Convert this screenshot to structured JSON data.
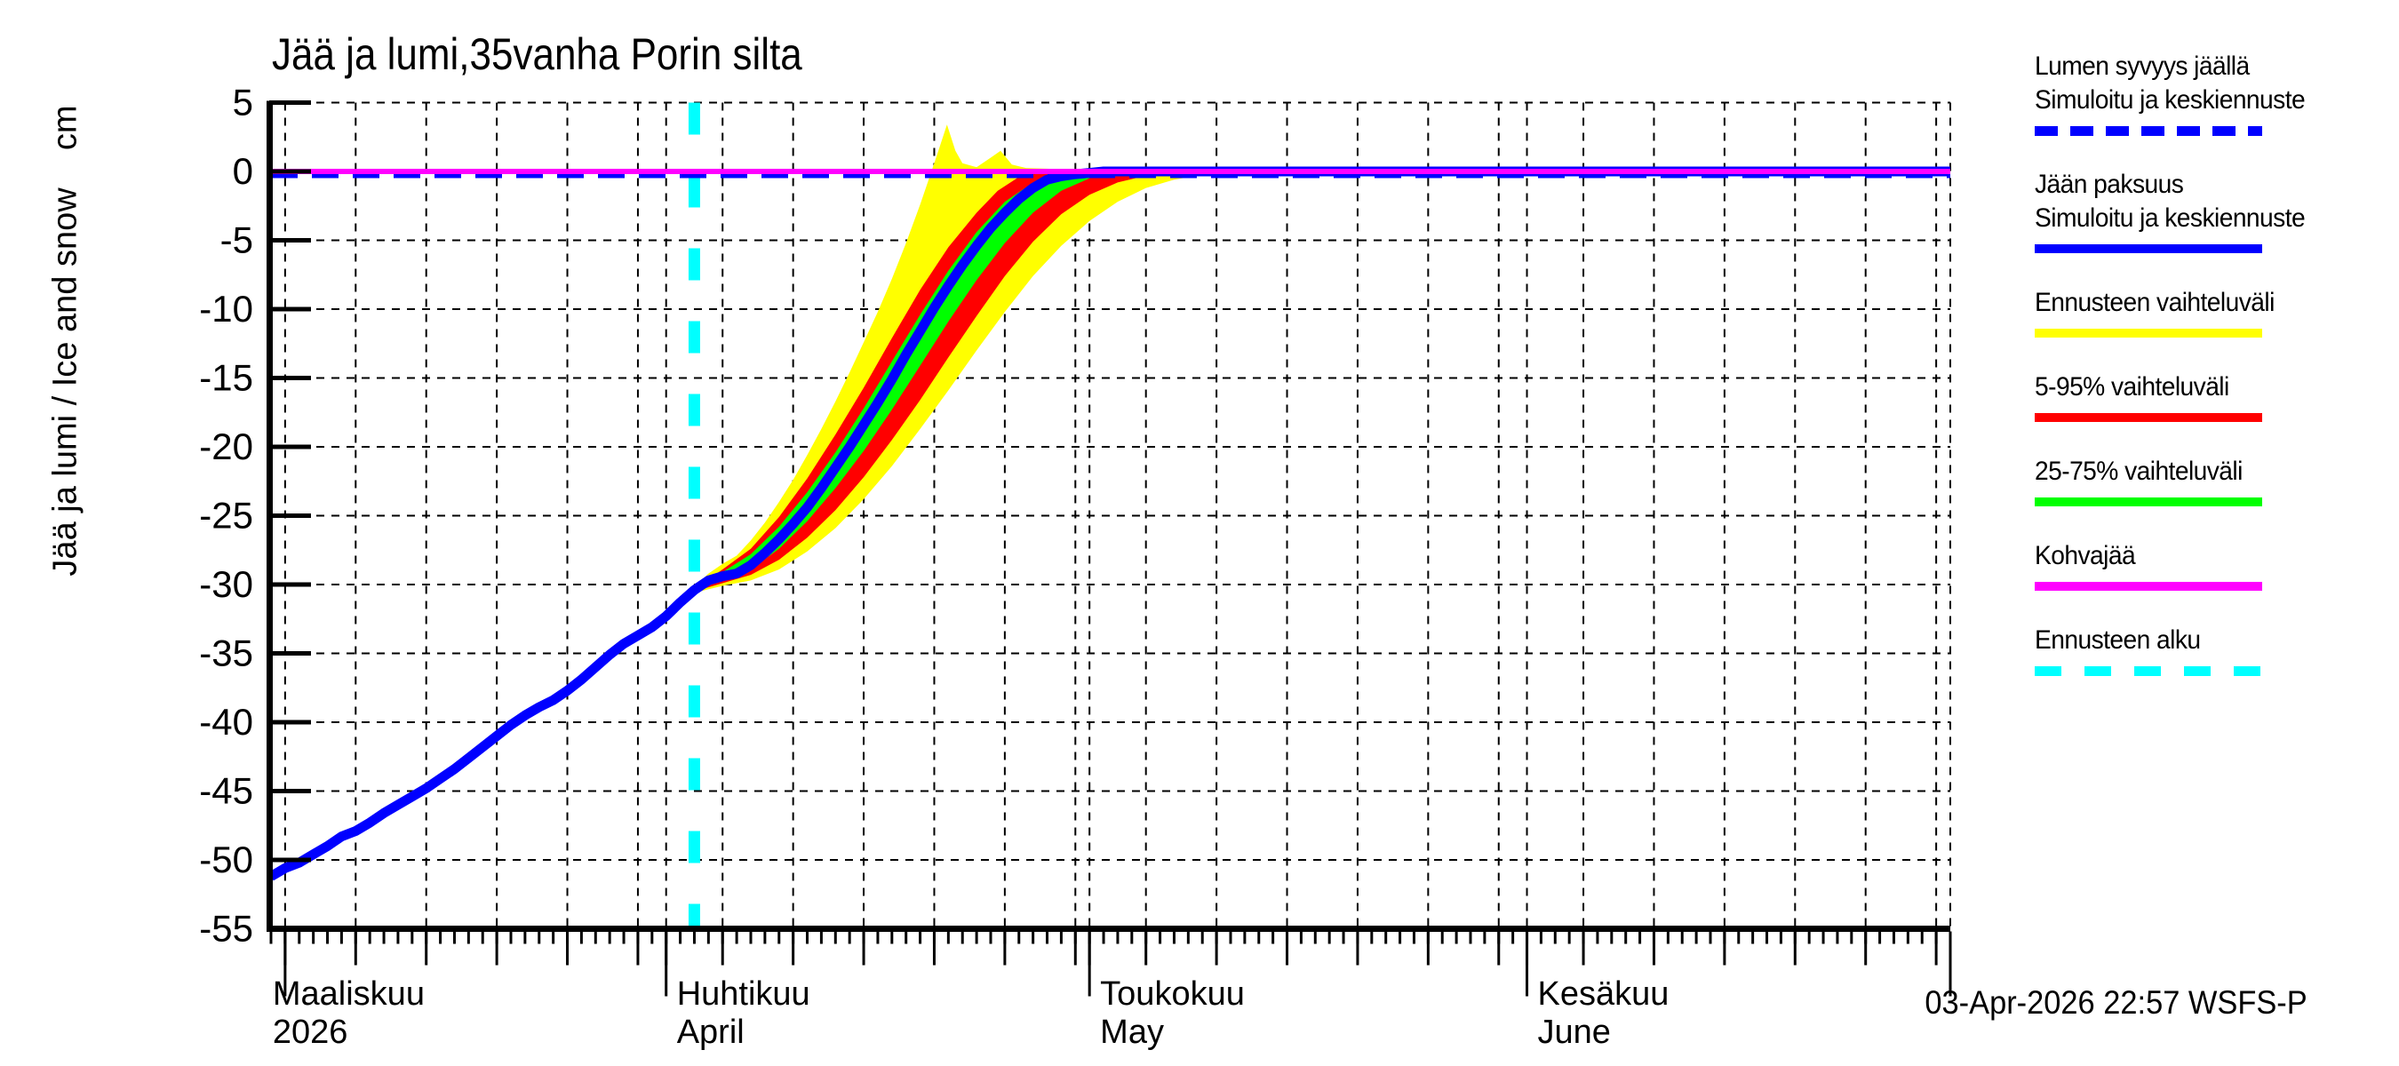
{
  "title": "Jää ja lumi,35vanha Porin silta",
  "y_axis_label": "Jää ja lumi / Ice and snow    cm",
  "timestamp": "03-Apr-2026 22:57 WSFS-P",
  "colors": {
    "simulated_line": "#0000ff",
    "snow_depth_line": "#0000ff",
    "forecast_range": "#ffff00",
    "range_5_95": "#ff0000",
    "range_25_75": "#00ff00",
    "kohvajaa": "#ff00ff",
    "forecast_start": "#00ffff",
    "grid": "#000000",
    "axis": "#000000"
  },
  "legend": {
    "items": [
      {
        "lines": [
          "Lumen syvyys jäällä",
          "Simuloitu ja keskiennuste"
        ],
        "color": "#0000ff",
        "style": "dashed",
        "icon": "dashed-blue-line"
      },
      {
        "lines": [
          "Jään paksuus",
          "Simuloitu ja keskiennuste"
        ],
        "color": "#0000ff",
        "style": "solid",
        "icon": "solid-blue-line"
      },
      {
        "lines": [
          "Ennusteen vaihteluväli"
        ],
        "color": "#ffff00",
        "style": "solid",
        "icon": "solid-yellow-line"
      },
      {
        "lines": [
          "5-95% vaihteluväli"
        ],
        "color": "#ff0000",
        "style": "solid",
        "icon": "solid-red-line"
      },
      {
        "lines": [
          "25-75% vaihteluväli"
        ],
        "color": "#00ff00",
        "style": "solid",
        "icon": "solid-green-line"
      },
      {
        "lines": [
          "Kohvajää"
        ],
        "color": "#ff00ff",
        "style": "solid",
        "icon": "solid-magenta-line"
      },
      {
        "lines": [
          "Ennusteen alku"
        ],
        "color": "#00ffff",
        "style": "dashed",
        "icon": "dashed-cyan-line"
      }
    ]
  },
  "chart_data": {
    "type": "line",
    "title": "Jää ja lumi,35vanha Porin silta",
    "ylabel": "Jää ja lumi / Ice and snow (cm)",
    "ylim": [
      -55,
      5
    ],
    "y_ticks": [
      5,
      0,
      -5,
      -10,
      -15,
      -20,
      -25,
      -30,
      -35,
      -40,
      -45,
      -50,
      -55
    ],
    "x_unit": "days since 2026-03-01",
    "xlim": [
      3,
      122
    ],
    "x_months": [
      {
        "label_fi": "Maaliskuu",
        "label_2": "2026",
        "tick_t": 4
      },
      {
        "label_fi": "Huhtikuu",
        "label_2": "April",
        "tick_t": 31
      },
      {
        "label_fi": "Toukokuu",
        "label_2": "May",
        "tick_t": 61
      },
      {
        "label_fi": "Kesäkuu",
        "label_2": "June",
        "tick_t": 92
      }
    ],
    "month_start_ts": [
      0,
      31,
      61,
      92
    ],
    "month_boundary_ts": [
      31,
      61,
      92,
      122
    ],
    "five_day_offsets": [
      4,
      9,
      14,
      19,
      24,
      29
    ],
    "grid": "on",
    "legend_position": "top-right-outside",
    "forecast_start": {
      "t": 33,
      "date": "03-Apr-2026"
    },
    "series": [
      {
        "name": "forecast_range_band",
        "legend": "Ennusteen vaihteluväli",
        "color": "#ffff00",
        "kind": "band",
        "upper": [
          [
            33,
            -30.2
          ],
          [
            34,
            -29.2
          ],
          [
            35,
            -28.5
          ],
          [
            36,
            -27.9
          ],
          [
            37,
            -26.8
          ],
          [
            38,
            -25.5
          ],
          [
            39,
            -24.0
          ],
          [
            40,
            -22.4
          ],
          [
            41,
            -20.6
          ],
          [
            42,
            -18.7
          ],
          [
            43,
            -16.7
          ],
          [
            44,
            -14.6
          ],
          [
            45,
            -12.4
          ],
          [
            46,
            -10.2
          ],
          [
            47,
            -7.8
          ],
          [
            48,
            -5.2
          ],
          [
            49,
            -2.4
          ],
          [
            49.7,
            -0.3
          ],
          [
            50.2,
            1.2
          ],
          [
            50.9,
            3.4
          ],
          [
            51.5,
            1.5
          ],
          [
            52,
            0.6
          ],
          [
            53,
            0.3
          ],
          [
            54,
            1.0
          ],
          [
            54.7,
            1.5
          ],
          [
            55.5,
            0.5
          ],
          [
            56.5,
            0.25
          ],
          [
            58,
            0.2
          ],
          [
            60,
            0.1
          ],
          [
            62,
            0
          ],
          [
            122,
            0
          ]
        ],
        "lower": [
          [
            33,
            -30.6
          ],
          [
            35,
            -30.1
          ],
          [
            37,
            -29.7
          ],
          [
            39,
            -28.9
          ],
          [
            41,
            -27.6
          ],
          [
            43,
            -25.9
          ],
          [
            45,
            -23.8
          ],
          [
            47,
            -21.4
          ],
          [
            49,
            -18.7
          ],
          [
            51,
            -15.9
          ],
          [
            53,
            -13.0
          ],
          [
            55,
            -10.2
          ],
          [
            57,
            -7.6
          ],
          [
            59,
            -5.4
          ],
          [
            61,
            -3.6
          ],
          [
            63,
            -2.2
          ],
          [
            65,
            -1.2
          ],
          [
            67,
            -0.6
          ],
          [
            69,
            -0.25
          ],
          [
            71,
            -0.1
          ],
          [
            74,
            0
          ],
          [
            122,
            0
          ]
        ]
      },
      {
        "name": "range_5_95_band",
        "legend": "5-95% vaihteluväli",
        "color": "#ff0000",
        "kind": "band",
        "upper": [
          [
            33,
            -30.3
          ],
          [
            35,
            -28.9
          ],
          [
            37,
            -27.4
          ],
          [
            39,
            -25.1
          ],
          [
            41,
            -22.3
          ],
          [
            43,
            -19.1
          ],
          [
            45,
            -15.7
          ],
          [
            47,
            -12.1
          ],
          [
            49,
            -8.6
          ],
          [
            51,
            -5.5
          ],
          [
            53,
            -3.0
          ],
          [
            54.5,
            -1.4
          ],
          [
            56,
            -0.4
          ],
          [
            57,
            0
          ],
          [
            122,
            0
          ]
        ],
        "lower": [
          [
            33,
            -30.5
          ],
          [
            35,
            -29.9
          ],
          [
            37,
            -29.3
          ],
          [
            39,
            -28.2
          ],
          [
            41,
            -26.6
          ],
          [
            43,
            -24.6
          ],
          [
            45,
            -22.2
          ],
          [
            47,
            -19.5
          ],
          [
            49,
            -16.6
          ],
          [
            51,
            -13.5
          ],
          [
            53,
            -10.5
          ],
          [
            55,
            -7.6
          ],
          [
            57,
            -5.1
          ],
          [
            59,
            -3.1
          ],
          [
            61,
            -1.7
          ],
          [
            63,
            -0.8
          ],
          [
            65,
            -0.3
          ],
          [
            67,
            -0.1
          ],
          [
            70,
            0
          ],
          [
            122,
            0
          ]
        ]
      },
      {
        "name": "range_25_75_band",
        "legend": "25-75% vaihteluväli",
        "color": "#00ff00",
        "kind": "band",
        "upper": [
          [
            33,
            -30.35
          ],
          [
            35,
            -29.1
          ],
          [
            37,
            -27.8
          ],
          [
            39,
            -25.8
          ],
          [
            41,
            -23.3
          ],
          [
            43,
            -20.4
          ],
          [
            45,
            -17.2
          ],
          [
            47,
            -13.8
          ],
          [
            49,
            -10.4
          ],
          [
            51,
            -7.2
          ],
          [
            53,
            -4.4
          ],
          [
            55,
            -2.2
          ],
          [
            57,
            -0.8
          ],
          [
            58.5,
            -0.25
          ],
          [
            60,
            0
          ],
          [
            122,
            0
          ]
        ],
        "lower": [
          [
            33,
            -30.45
          ],
          [
            35,
            -29.7
          ],
          [
            37,
            -28.9
          ],
          [
            39,
            -27.4
          ],
          [
            41,
            -25.4
          ],
          [
            43,
            -23.0
          ],
          [
            45,
            -20.3
          ],
          [
            47,
            -17.3
          ],
          [
            49,
            -14.1
          ],
          [
            51,
            -10.9
          ],
          [
            53,
            -7.9
          ],
          [
            55,
            -5.2
          ],
          [
            57,
            -3.0
          ],
          [
            59,
            -1.4
          ],
          [
            61,
            -0.5
          ],
          [
            63,
            -0.1
          ],
          [
            65,
            0
          ],
          [
            122,
            0
          ]
        ]
      },
      {
        "name": "ice_thickness",
        "legend": "Jään paksuus — Simuloitu ja keskiennuste",
        "color": "#0000ff",
        "kind": "line",
        "width": 11,
        "points": [
          [
            3,
            -51.2
          ],
          [
            4,
            -50.6
          ],
          [
            5,
            -50.2
          ],
          [
            6,
            -49.6
          ],
          [
            7,
            -49.0
          ],
          [
            8,
            -48.3
          ],
          [
            9,
            -47.9
          ],
          [
            10,
            -47.3
          ],
          [
            11,
            -46.6
          ],
          [
            12,
            -46.0
          ],
          [
            13,
            -45.4
          ],
          [
            14,
            -44.8
          ],
          [
            15,
            -44.1
          ],
          [
            16,
            -43.4
          ],
          [
            17,
            -42.6
          ],
          [
            18,
            -41.8
          ],
          [
            19,
            -41.0
          ],
          [
            20,
            -40.2
          ],
          [
            21,
            -39.5
          ],
          [
            22,
            -38.9
          ],
          [
            23,
            -38.4
          ],
          [
            24,
            -37.7
          ],
          [
            25,
            -36.9
          ],
          [
            26,
            -36.0
          ],
          [
            27,
            -35.1
          ],
          [
            28,
            -34.3
          ],
          [
            29,
            -33.7
          ],
          [
            30,
            -33.1
          ],
          [
            31,
            -32.3
          ],
          [
            32,
            -31.3
          ],
          [
            33,
            -30.4
          ],
          [
            34,
            -29.7
          ],
          [
            35,
            -29.4
          ],
          [
            36,
            -29.2
          ],
          [
            37,
            -28.6
          ],
          [
            38,
            -27.7
          ],
          [
            39,
            -26.7
          ],
          [
            40,
            -25.6
          ],
          [
            41,
            -24.4
          ],
          [
            42,
            -23.0
          ],
          [
            43,
            -21.5
          ],
          [
            44,
            -20.0
          ],
          [
            45,
            -18.4
          ],
          [
            46,
            -16.8
          ],
          [
            47,
            -15.1
          ],
          [
            48,
            -13.3
          ],
          [
            49,
            -11.6
          ],
          [
            50,
            -9.9
          ],
          [
            51,
            -8.3
          ],
          [
            52,
            -6.8
          ],
          [
            53,
            -5.4
          ],
          [
            54,
            -4.1
          ],
          [
            55,
            -3.0
          ],
          [
            56,
            -2.0
          ],
          [
            57,
            -1.2
          ],
          [
            58,
            -0.6
          ],
          [
            59,
            -0.35
          ],
          [
            60,
            -0.2
          ],
          [
            61,
            -0.1
          ],
          [
            62,
            0
          ],
          [
            122,
            0
          ]
        ]
      },
      {
        "name": "snow_depth_on_ice",
        "legend": "Lumen syvyys jäällä — Simuloitu ja keskiennuste",
        "color": "#0000ff",
        "kind": "dashed-line",
        "width": 10,
        "points": [
          [
            3,
            0
          ],
          [
            122,
            0
          ]
        ]
      },
      {
        "name": "kohvajaa",
        "legend": "Kohvajää",
        "color": "#ff00ff",
        "kind": "line",
        "width": 6,
        "points": [
          [
            3,
            0
          ],
          [
            122,
            0
          ]
        ]
      }
    ]
  }
}
